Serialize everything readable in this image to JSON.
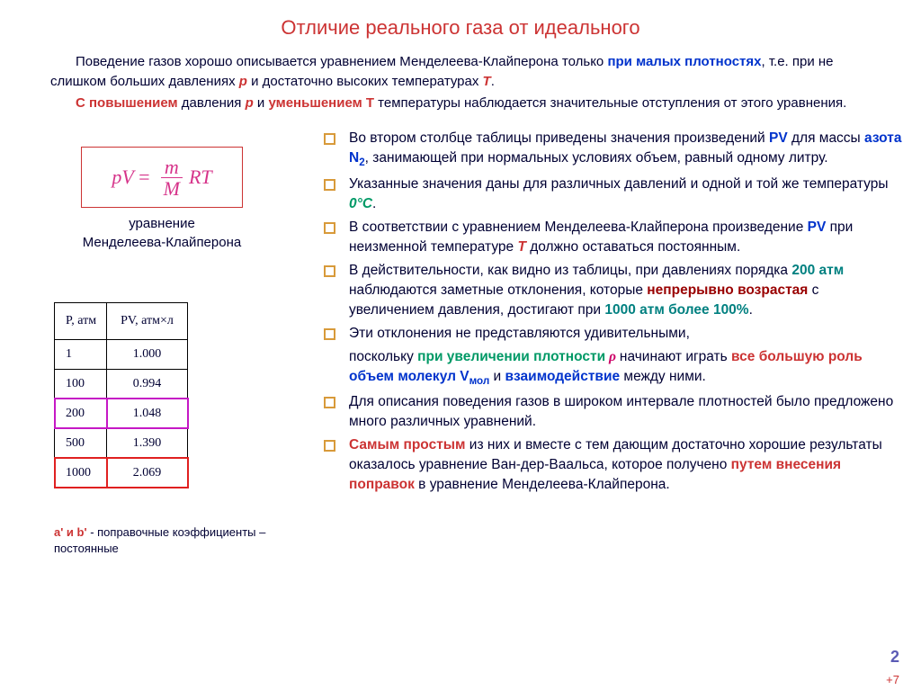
{
  "title": "Отличие реального газа от идеального",
  "intro": {
    "p1_a": "Поведение газов хорошо описывается уравнением Менделеева-Клайперона только ",
    "p1_b": "при малых плотностях",
    "p1_c": ", т.е. при не слишком больших давлениях ",
    "p1_d": "p",
    "p1_e": " и достаточно высоких температурах ",
    "p1_f": "T",
    "p1_g": ".",
    "p2_a": "С повышением",
    "p2_b": " давления ",
    "p2_c": "p",
    "p2_d": " и ",
    "p2_e": "уменьшением T",
    "p2_f": " температуры наблюдается значительные отступления от этого уравнения."
  },
  "formula": {
    "pV": "pV",
    "eq": "=",
    "m": "m",
    "M": "M",
    "RT": "RT",
    "caption1": "уравнение",
    "caption2": "Менделеева-Клайперона"
  },
  "table": {
    "h1": "P, атм",
    "h2": "PV, атм×л",
    "rows": [
      {
        "p": "1",
        "pv": "1.000",
        "hl": ""
      },
      {
        "p": "100",
        "pv": "0.994",
        "hl": ""
      },
      {
        "p": "200",
        "pv": "1.048",
        "hl": "magenta"
      },
      {
        "p": "500",
        "pv": "1.390",
        "hl": ""
      },
      {
        "p": "1000",
        "pv": "2.069",
        "hl": "red"
      }
    ]
  },
  "coef": {
    "ab": "a' и b'",
    "rest": " - поправочные коэффициенты – постоянные"
  },
  "bullets": {
    "b1": {
      "t1": "Во втором столбце таблицы приведены значения произведений ",
      "pv": "PV",
      "t2": " для массы ",
      "azot": "азота N",
      "sub2": "2",
      "t3": ", занимающей при нормальных условиях объем, равный одному литру."
    },
    "b2": {
      "t1": "Указанные значения даны для различных давлений и одной и той же температуры ",
      "temp": "0°C",
      "t2": "."
    },
    "b3": {
      "t1": "В соответствии с уравнением Менделеева-Клайперона произведение ",
      "pv": "PV",
      "t2": " при неизменной температуре ",
      "T": "T",
      "t3": " должно оставаться постоянным."
    },
    "b4": {
      "t1": "В действительности, как видно из таблицы, при давлениях порядка ",
      "v200": "200 атм",
      "t2": " наблюдаются заметные отклонения, которые ",
      "grow": "непрерывно возрастая",
      "t3": " с увеличением давления, достигают при ",
      "v1000": "1000 атм более 100%",
      "t4": "."
    },
    "b5": {
      "t1": "Эти отклонения не представляются удивительными,"
    },
    "b5b": {
      "t1": "поскольку ",
      "dens": "при увеличении плотности",
      "rho": " ρ ",
      "t2": "начинают играть ",
      "role": "все большую роль ",
      "vol": "объем молекул V",
      "mol": "мол",
      "t3": " и ",
      "inter": "взаимодействие",
      "t4": " между ними."
    },
    "b6": {
      "t1": "Для описания поведения газов в широком интервале плотностей было предложено много различных уравнений."
    },
    "b7": {
      "simple": "Самым простым",
      "t1": " из них и вместе с тем дающим достаточно хорошие результаты оказалось уравнение Ван-дер-Ваальса, которое получено ",
      "corr": "путем внесения поправок",
      "t2": " в уравнение Менделеева-Клайперона."
    }
  },
  "pagenum": "2",
  "plus7": "+7",
  "colors": {
    "title": "#cc3333",
    "blue": "#0033cc",
    "green": "#009966",
    "teal": "#008080",
    "darkred": "#990000",
    "pink": "#d6338a",
    "bullet_border": "#d89a3a",
    "body_text": "#000033"
  }
}
